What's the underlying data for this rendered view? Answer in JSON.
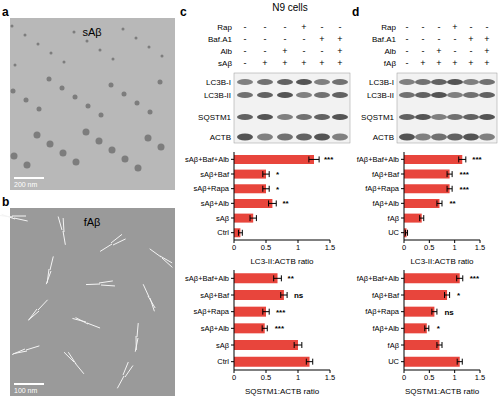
{
  "title": "N9 cells",
  "panels": {
    "a": {
      "label": "a",
      "image_label": "sAβ",
      "scale_bar": "200 nm"
    },
    "b": {
      "label": "b",
      "image_label": "fAβ",
      "scale_bar": "100 nm"
    },
    "c": {
      "label": "c",
      "conditions": [
        "Rap",
        "Baf.A1",
        "Alb",
        "sAβ"
      ],
      "signs": [
        [
          "-",
          "-",
          "-",
          "+",
          "-",
          "-"
        ],
        [
          "-",
          "-",
          "-",
          "-",
          "+",
          "+"
        ],
        [
          "-",
          "-",
          "+",
          "-",
          "-",
          "+"
        ],
        [
          "-",
          "+",
          "+",
          "+",
          "+",
          "+"
        ]
      ],
      "bands": [
        "LC3B-I",
        "LC3B-II",
        "SQSTM1",
        "ACTB"
      ]
    },
    "d": {
      "label": "d",
      "conditions": [
        "Rap",
        "Baf.A1",
        "Alb",
        "fAβ"
      ],
      "signs": [
        [
          "-",
          "-",
          "-",
          "+",
          "-",
          "-"
        ],
        [
          "-",
          "-",
          "-",
          "-",
          "+",
          "+"
        ],
        [
          "-",
          "-",
          "+",
          "-",
          "-",
          "+"
        ],
        [
          "-",
          "+",
          "+",
          "+",
          "+",
          "+"
        ]
      ],
      "bands": [
        "LC3B-I",
        "LC3B-II",
        "SQSTM1",
        "ACTB"
      ]
    }
  },
  "chart_data": [
    {
      "type": "bar",
      "orientation": "horizontal",
      "categories": [
        "sAβ+Baf+Alb",
        "sAβ+Baf",
        "sAβ+Rapa",
        "sAβ+Alb",
        "sAβ",
        "Ctrl"
      ],
      "values": [
        1.25,
        0.5,
        0.5,
        0.6,
        0.3,
        0.1
      ],
      "errors": [
        0.08,
        0.05,
        0.05,
        0.06,
        0.05,
        0.03
      ],
      "significance": [
        "***",
        "*",
        "*",
        "**",
        null,
        null
      ],
      "color": "#e8453c",
      "xlabel": "LC3-II:ACTB ratio",
      "xlim": [
        0,
        1.5
      ],
      "xticks": [
        0,
        0.5,
        1,
        1.5
      ]
    },
    {
      "type": "bar",
      "orientation": "horizontal",
      "categories": [
        "sAβ+Baf+Alb",
        "sAβ+Baf",
        "sAβ+Rapa",
        "sAβ+Alb",
        "sAβ",
        "Ctrl"
      ],
      "values": [
        0.68,
        0.78,
        0.5,
        0.48,
        1.0,
        1.18
      ],
      "errors": [
        0.06,
        0.05,
        0.05,
        0.04,
        0.06,
        0.05
      ],
      "significance": [
        "**",
        "ns",
        "***",
        "***",
        null,
        null
      ],
      "color": "#e8453c",
      "xlabel": "SQSTM1:ACTB ratio",
      "xlim": [
        0,
        1.5
      ],
      "xticks": [
        0,
        0.5,
        1,
        1.5
      ]
    },
    {
      "type": "bar",
      "orientation": "horizontal",
      "categories": [
        "fAβ+Baf+Alb",
        "fAβ+Baf",
        "fAβ+Rapa",
        "fAβ+Alb",
        "fAβ",
        "UC"
      ],
      "values": [
        1.15,
        0.9,
        0.9,
        0.7,
        0.35,
        0.05
      ],
      "errors": [
        0.07,
        0.05,
        0.05,
        0.05,
        0.04,
        0.02
      ],
      "significance": [
        "***",
        "***",
        "***",
        "**",
        null,
        null
      ],
      "color": "#e8453c",
      "xlabel": "LC3-II:ACTB ratio",
      "xlim": [
        0,
        1.5
      ],
      "xticks": [
        0,
        0.5,
        1,
        1.5
      ]
    },
    {
      "type": "bar",
      "orientation": "horizontal",
      "categories": [
        "fAβ+Baf+Alb",
        "fAβ+Baf",
        "fAβ+Rapa",
        "fAβ+Alb",
        "fAβ",
        "UC"
      ],
      "values": [
        1.1,
        0.85,
        0.6,
        0.45,
        0.7,
        1.1
      ],
      "errors": [
        0.06,
        0.05,
        0.05,
        0.04,
        0.05,
        0.05
      ],
      "significance": [
        "***",
        "*",
        "ns",
        "*",
        null,
        null
      ],
      "color": "#e8453c",
      "xlabel": "SQSTM1:ACTB ratio",
      "xlim": [
        0,
        1.5
      ],
      "xticks": [
        0,
        0.5,
        1,
        1.5
      ]
    }
  ]
}
